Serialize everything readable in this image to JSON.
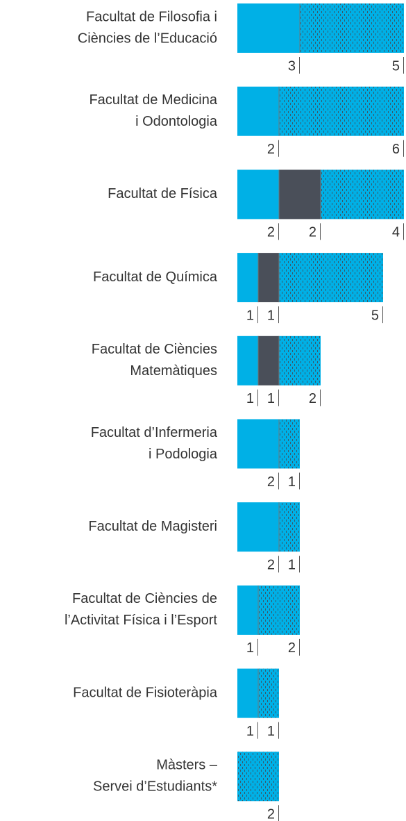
{
  "chart_data": {
    "type": "stacked-bar-horizontal",
    "categories": [
      [
        "Facultat de Filosofia i",
        "Ciències de l’Educació"
      ],
      [
        "Facultat de Medicina",
        "i Odontologia"
      ],
      [
        "Facultat de Física"
      ],
      [
        "Facultat de Química"
      ],
      [
        "Facultat de Ciències",
        "Matemàtiques"
      ],
      [
        "Facultat d’Infermeria",
        "i Podologia"
      ],
      [
        "Facultat de Magisteri"
      ],
      [
        "Facultat de Ciències de",
        "l’Activitat Física i l’Esport"
      ],
      [
        "Facultat de Fisioteràpia"
      ],
      [
        "Màsters –",
        "Servei d’Estudiants*"
      ]
    ],
    "series": [
      {
        "color": "#00b0e6",
        "values": [
          3,
          2,
          2,
          1,
          1,
          2,
          2,
          1,
          1,
          null
        ]
      },
      {
        "color": "#4a4f59",
        "values": [
          null,
          null,
          2,
          1,
          1,
          null,
          null,
          null,
          null,
          null
        ]
      },
      {
        "color": "#00b0e6",
        "pattern": true,
        "values": [
          5,
          6,
          4,
          5,
          2,
          1,
          1,
          2,
          1,
          2
        ]
      }
    ]
  }
}
